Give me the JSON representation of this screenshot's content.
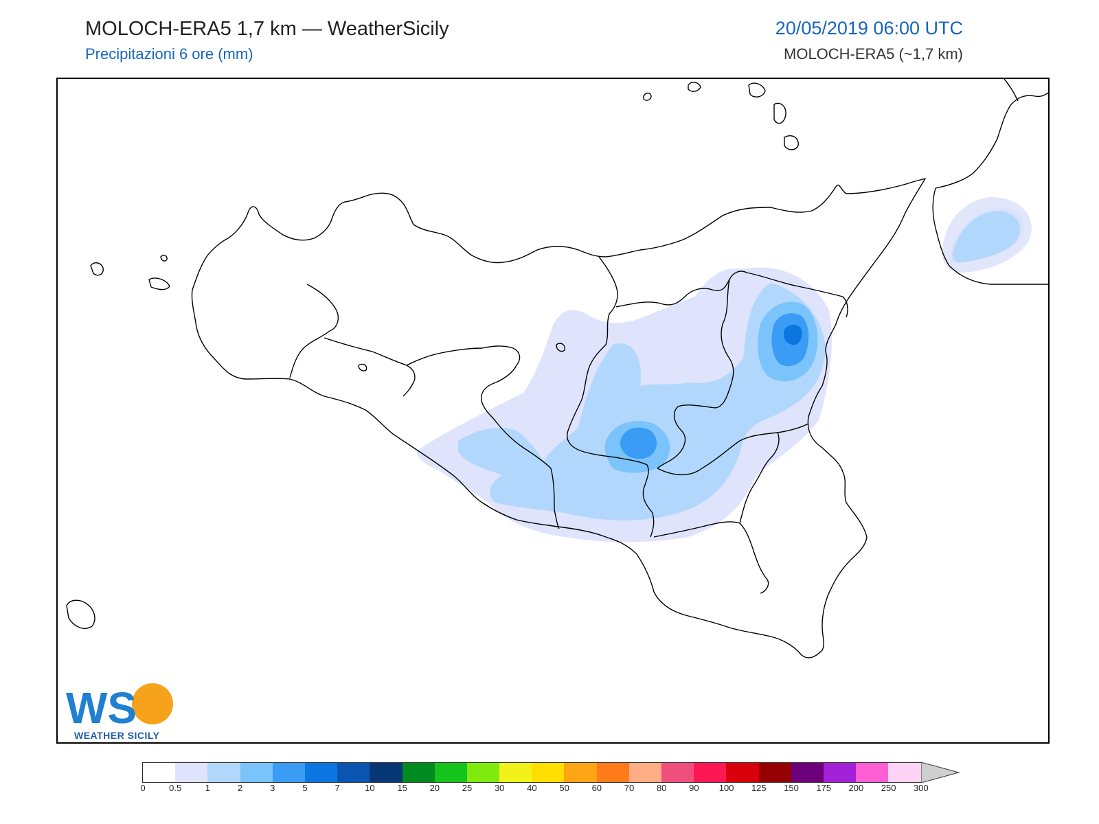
{
  "header": {
    "title": "MOLOCH-ERA5 1,7 km — WeatherSicily",
    "subtitle": "Precipitazioni 6 ore (mm)",
    "datetime": "20/05/2019 06:00 UTC",
    "model": "MOLOCH-ERA5 (~1,7 km)"
  },
  "logo": {
    "letters": "WS",
    "text": "WEATHER SICILY"
  },
  "colorbar": {
    "ticks": [
      "0",
      "0.5",
      "1",
      "2",
      "3",
      "5",
      "7",
      "10",
      "15",
      "20",
      "25",
      "30",
      "40",
      "50",
      "60",
      "70",
      "80",
      "90",
      "100",
      "125",
      "150",
      "175",
      "200",
      "250",
      "300"
    ],
    "colors": [
      "#ffffff",
      "#dfe3fb",
      "#b1d8fc",
      "#7bc3fb",
      "#3b9cf6",
      "#0b76e0",
      "#0a55b0",
      "#083775",
      "#008a1f",
      "#14c41c",
      "#7fea0d",
      "#f0f21a",
      "#ffde00",
      "#ffa412",
      "#ff7a1a",
      "#ffad85",
      "#f04f7d",
      "#ff1753",
      "#d9000b",
      "#950000",
      "#6d007b",
      "#a321d6",
      "#ff5fd5",
      "#ffd3f3"
    ],
    "overflow_color": "#cfcfcf"
  },
  "map": {
    "land_color": "#ffffff",
    "border_color": "#000000",
    "rain_colors": {
      "light": "#dfe3fb",
      "moderate": "#b1d8fc",
      "heavy": "#7bc3fb",
      "intense": "#3b9cf6",
      "peak": "#0b76e0"
    }
  }
}
